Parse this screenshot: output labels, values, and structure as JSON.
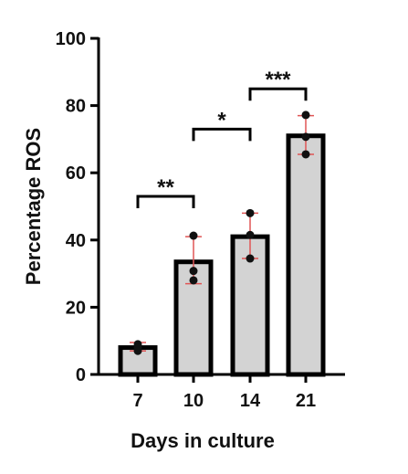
{
  "chart_data": {
    "type": "bar",
    "xlabel": "Days in culture",
    "ylabel": "Percentage ROS",
    "ylim": [
      0,
      100
    ],
    "yticks": [
      0,
      20,
      40,
      60,
      80,
      100
    ],
    "categories": [
      "7",
      "10",
      "14",
      "21"
    ],
    "values": [
      8,
      33.5,
      41,
      71
    ],
    "error_low": [
      7,
      27,
      34.5,
      65.5
    ],
    "error_high": [
      9.5,
      41,
      48,
      77
    ],
    "points": [
      [
        9,
        8,
        7
      ],
      [
        41.3,
        30.8,
        28
      ],
      [
        48,
        41.5,
        34.5
      ],
      [
        77.2,
        70.7,
        65.5
      ]
    ],
    "significance": [
      {
        "from": 0,
        "to": 1,
        "label": "**",
        "y": 53
      },
      {
        "from": 1,
        "to": 2,
        "label": "*",
        "y": 73
      },
      {
        "from": 2,
        "to": 3,
        "label": "***",
        "y": 85
      }
    ],
    "colors": {
      "bar_fill": "#d3d3d3",
      "bar_stroke": "#000000",
      "error_bar": "#e05555",
      "point": "#111111"
    }
  }
}
